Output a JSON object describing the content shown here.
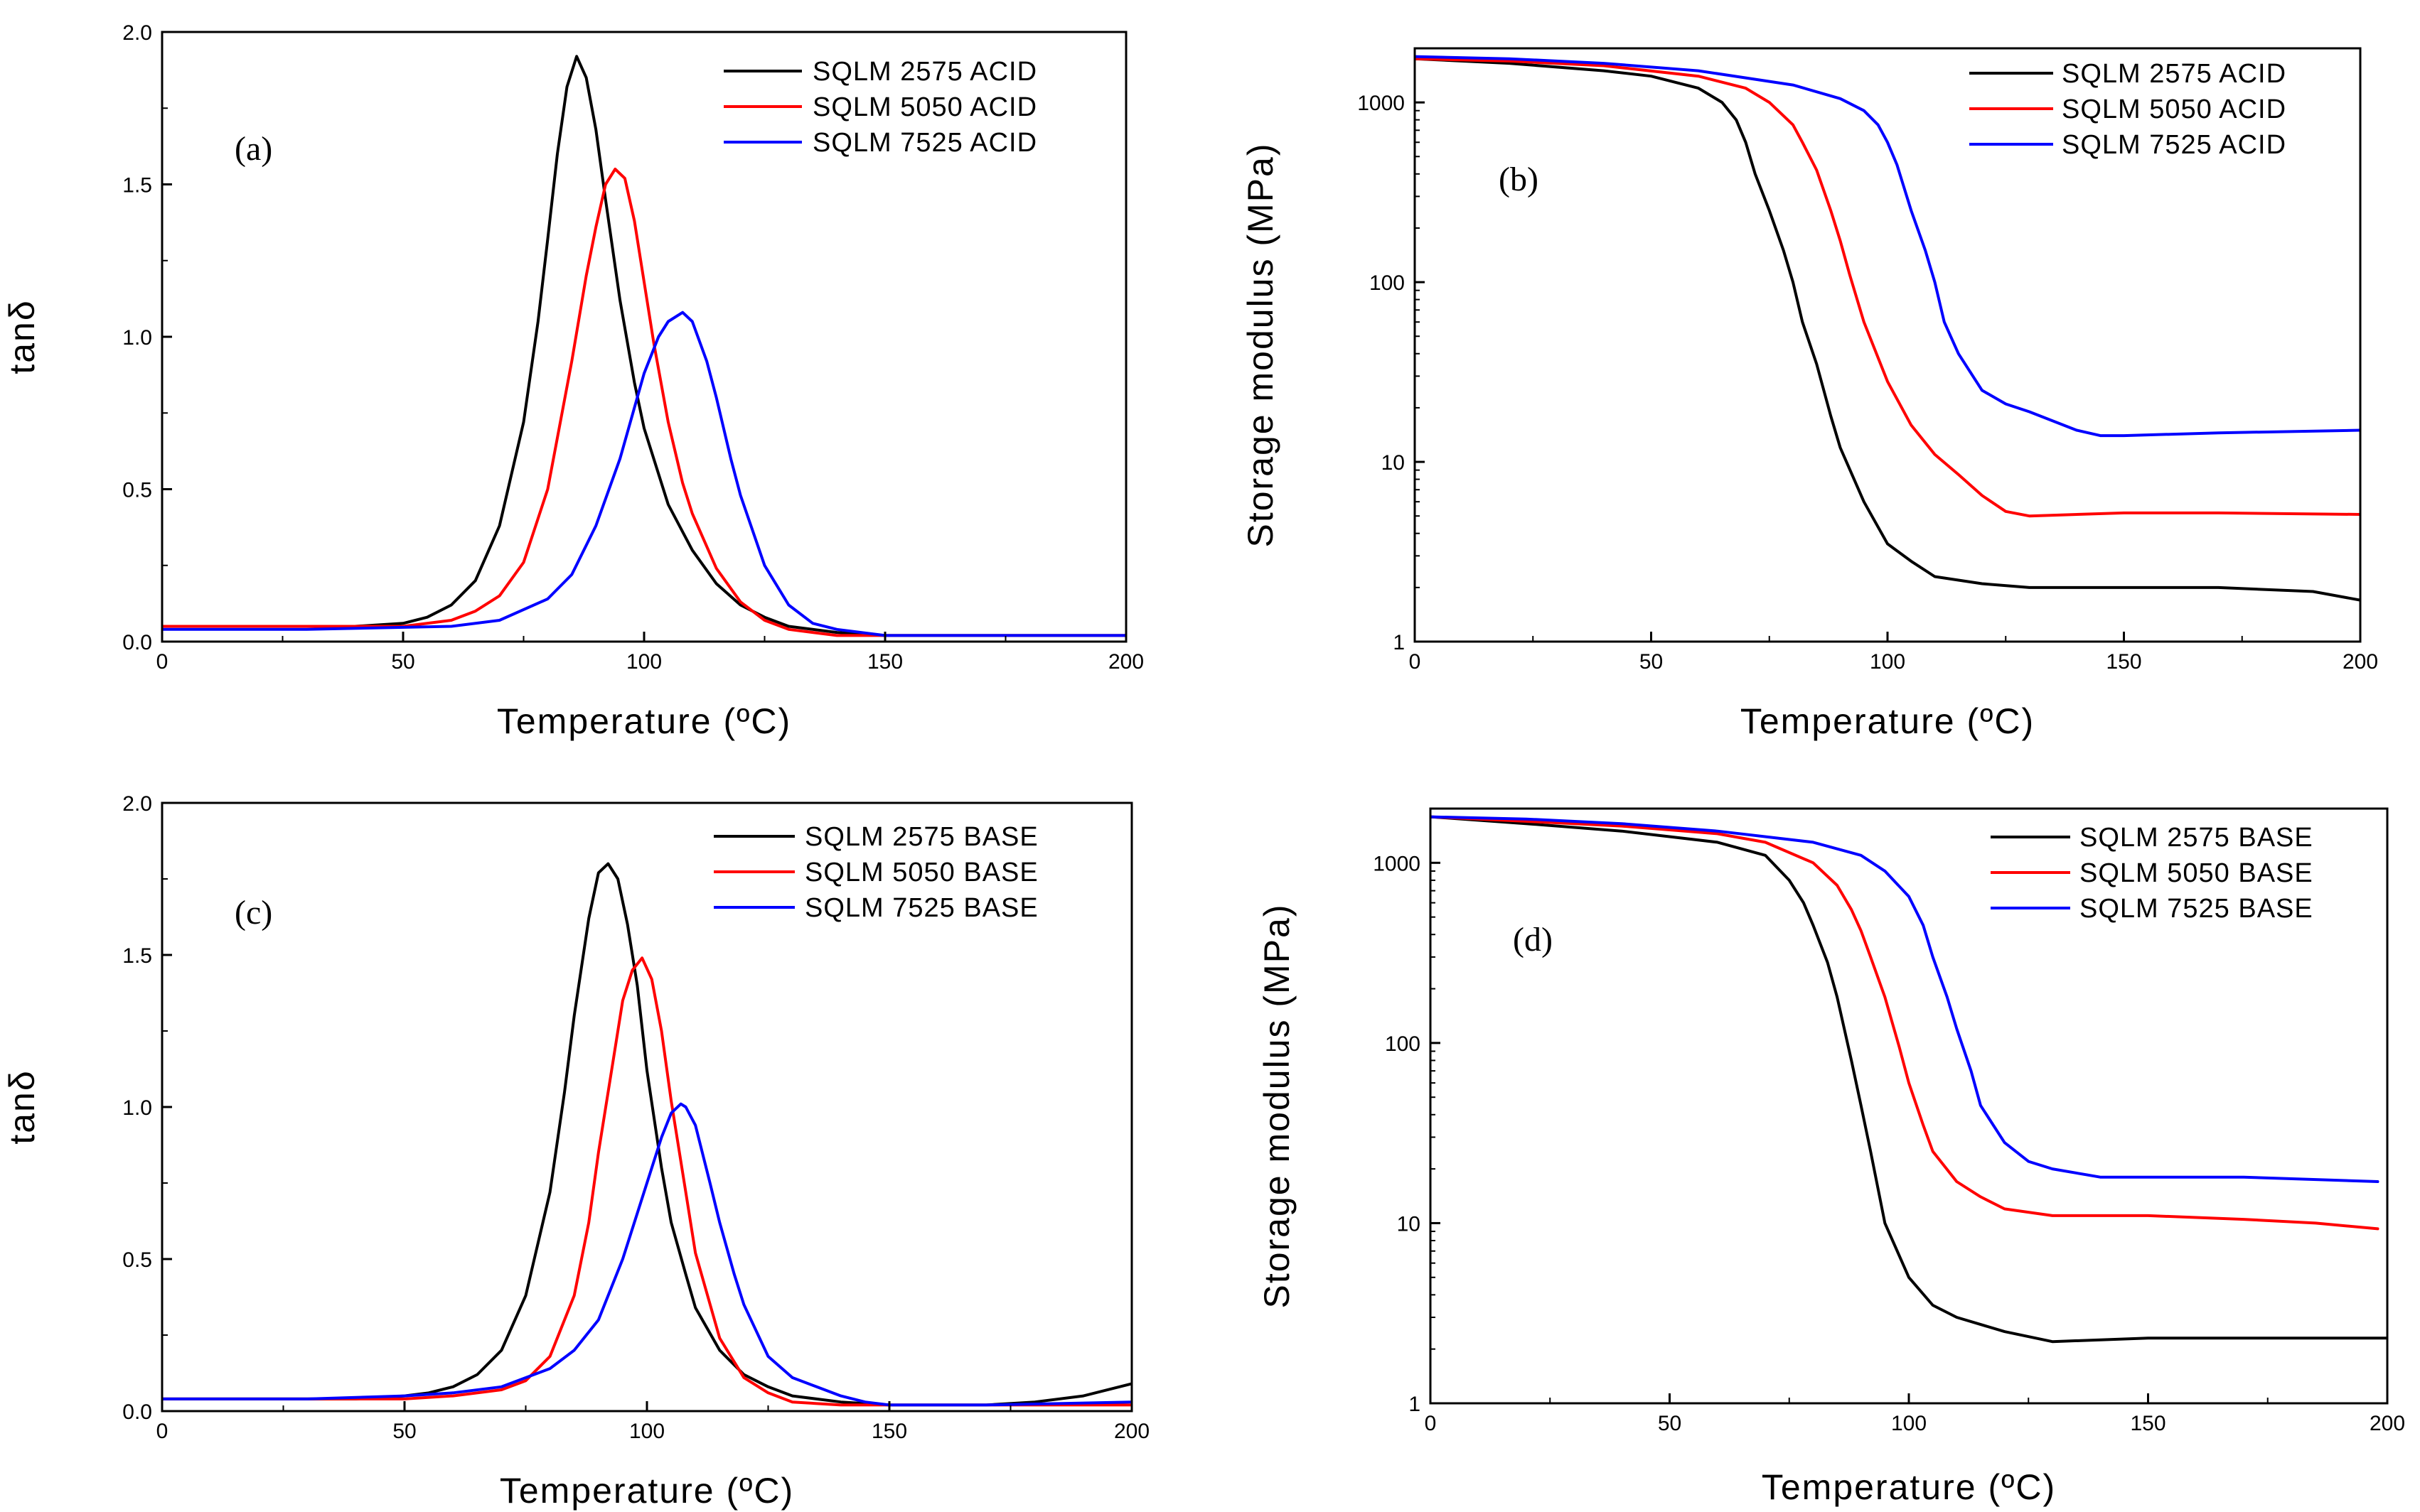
{
  "chart_data": [
    {
      "type": "line",
      "panel_label": "(a)",
      "xlabel": "Temperature (ºC)",
      "ylabel": "tanδ",
      "xlim": [
        0,
        200
      ],
      "ylim": [
        0,
        2.0
      ],
      "yscale": "linear",
      "xticks": [
        0,
        50,
        100,
        150,
        200
      ],
      "yticks": [
        0.0,
        0.5,
        1.0,
        1.5,
        2.0
      ],
      "xtick_labels": [
        "0",
        "50",
        "100",
        "150",
        "200"
      ],
      "ytick_labels": [
        "0.0",
        "0.5",
        "1.0",
        "1.5",
        "2.0"
      ],
      "legend_position": "top-right",
      "series": [
        {
          "name": "SQLM 2575 ACID",
          "color": "#000000",
          "x": [
            0,
            20,
            40,
            50,
            55,
            60,
            65,
            70,
            75,
            78,
            80,
            82,
            84,
            86,
            88,
            90,
            92,
            95,
            98,
            100,
            105,
            110,
            115,
            120,
            125,
            130,
            140,
            150,
            170,
            190,
            200
          ],
          "y": [
            0.05,
            0.05,
            0.05,
            0.06,
            0.08,
            0.12,
            0.2,
            0.38,
            0.72,
            1.05,
            1.32,
            1.6,
            1.82,
            1.92,
            1.85,
            1.68,
            1.45,
            1.12,
            0.85,
            0.7,
            0.45,
            0.3,
            0.19,
            0.12,
            0.08,
            0.05,
            0.03,
            0.02,
            0.02,
            0.02,
            0.02
          ]
        },
        {
          "name": "SQLM 5050 ACID",
          "color": "#ff0000",
          "x": [
            0,
            30,
            50,
            60,
            65,
            70,
            75,
            80,
            85,
            88,
            90,
            92,
            94,
            96,
            98,
            100,
            102,
            105,
            108,
            110,
            115,
            120,
            125,
            130,
            140,
            150,
            170,
            200
          ],
          "y": [
            0.05,
            0.05,
            0.05,
            0.07,
            0.1,
            0.15,
            0.26,
            0.5,
            0.92,
            1.2,
            1.36,
            1.5,
            1.55,
            1.52,
            1.38,
            1.18,
            0.98,
            0.72,
            0.52,
            0.42,
            0.24,
            0.13,
            0.07,
            0.04,
            0.02,
            0.02,
            0.02,
            0.02
          ]
        },
        {
          "name": "SQLM 7525 ACID",
          "color": "#0000ff",
          "x": [
            0,
            30,
            60,
            70,
            80,
            85,
            90,
            95,
            100,
            103,
            105,
            108,
            110,
            113,
            115,
            118,
            120,
            125,
            130,
            135,
            140,
            145,
            150,
            170,
            200
          ],
          "y": [
            0.04,
            0.04,
            0.05,
            0.07,
            0.14,
            0.22,
            0.38,
            0.6,
            0.88,
            1.0,
            1.05,
            1.08,
            1.05,
            0.92,
            0.8,
            0.6,
            0.48,
            0.25,
            0.12,
            0.06,
            0.04,
            0.03,
            0.02,
            0.02,
            0.02
          ]
        }
      ]
    },
    {
      "type": "line",
      "panel_label": "(b)",
      "xlabel": "Temperature (ºC)",
      "ylabel": "Storage modulus (MPa)",
      "xlim": [
        0,
        200
      ],
      "ylim": [
        1,
        2000
      ],
      "yscale": "log",
      "xticks": [
        0,
        50,
        100,
        150,
        200
      ],
      "yticks": [
        1,
        10,
        100,
        1000
      ],
      "xtick_labels": [
        "0",
        "50",
        "100",
        "150",
        "200"
      ],
      "ytick_labels": [
        "1",
        "10",
        "100",
        "1000"
      ],
      "legend_position": "top-right",
      "series": [
        {
          "name": "SQLM 2575 ACID",
          "color": "#000000",
          "x": [
            0,
            20,
            40,
            50,
            60,
            65,
            68,
            70,
            72,
            75,
            78,
            80,
            82,
            85,
            88,
            90,
            95,
            100,
            105,
            110,
            120,
            130,
            150,
            170,
            190,
            200
          ],
          "y": [
            1750,
            1650,
            1500,
            1400,
            1200,
            1000,
            800,
            600,
            400,
            250,
            150,
            100,
            60,
            35,
            18,
            12,
            6,
            3.5,
            2.8,
            2.3,
            2.1,
            2.0,
            2.0,
            2.0,
            1.9,
            1.7
          ]
        },
        {
          "name": "SQLM 5050 ACID",
          "color": "#ff0000",
          "x": [
            0,
            20,
            40,
            60,
            70,
            75,
            80,
            82,
            85,
            88,
            90,
            92,
            95,
            100,
            105,
            110,
            115,
            120,
            125,
            130,
            150,
            170,
            200
          ],
          "y": [
            1750,
            1700,
            1600,
            1400,
            1200,
            1000,
            750,
            600,
            420,
            250,
            170,
            110,
            60,
            28,
            16,
            11,
            8.5,
            6.5,
            5.3,
            5.0,
            5.2,
            5.2,
            5.1
          ]
        },
        {
          "name": "SQLM 7525 ACID",
          "color": "#0000ff",
          "x": [
            0,
            20,
            40,
            60,
            80,
            90,
            95,
            98,
            100,
            102,
            105,
            108,
            110,
            112,
            115,
            120,
            125,
            130,
            140,
            145,
            150,
            170,
            200
          ],
          "y": [
            1800,
            1750,
            1650,
            1500,
            1250,
            1050,
            900,
            750,
            600,
            450,
            250,
            150,
            100,
            60,
            40,
            25,
            21,
            19,
            15,
            14,
            14,
            14.5,
            15
          ]
        }
      ]
    },
    {
      "type": "line",
      "panel_label": "(c)",
      "xlabel": "Temperature (ºC)",
      "ylabel": "tanδ",
      "xlim": [
        0,
        200
      ],
      "ylim": [
        0,
        2.0
      ],
      "yscale": "linear",
      "xticks": [
        0,
        50,
        100,
        150,
        200
      ],
      "yticks": [
        0.0,
        0.5,
        1.0,
        1.5,
        2.0
      ],
      "xtick_labels": [
        "0",
        "50",
        "100",
        "150",
        "200"
      ],
      "ytick_labels": [
        "0.0",
        "0.5",
        "1.0",
        "1.5",
        "2.0"
      ],
      "legend_position": "top-right",
      "series": [
        {
          "name": "SQLM 2575 BASE",
          "color": "#000000",
          "x": [
            0,
            20,
            40,
            50,
            55,
            60,
            65,
            70,
            75,
            80,
            83,
            85,
            88,
            90,
            92,
            94,
            96,
            98,
            100,
            103,
            105,
            108,
            110,
            115,
            120,
            125,
            130,
            140,
            150,
            170,
            180,
            190,
            200
          ],
          "y": [
            0.04,
            0.04,
            0.04,
            0.05,
            0.06,
            0.08,
            0.12,
            0.2,
            0.38,
            0.72,
            1.05,
            1.3,
            1.62,
            1.77,
            1.8,
            1.75,
            1.6,
            1.4,
            1.12,
            0.8,
            0.62,
            0.45,
            0.34,
            0.2,
            0.12,
            0.08,
            0.05,
            0.03,
            0.02,
            0.02,
            0.03,
            0.05,
            0.09
          ]
        },
        {
          "name": "SQLM 5050 BASE",
          "color": "#ff0000",
          "x": [
            0,
            30,
            50,
            60,
            70,
            75,
            80,
            85,
            88,
            90,
            93,
            95,
            97,
            99,
            101,
            103,
            105,
            108,
            110,
            115,
            120,
            125,
            130,
            140,
            150,
            170,
            200
          ],
          "y": [
            0.04,
            0.04,
            0.04,
            0.05,
            0.07,
            0.1,
            0.18,
            0.38,
            0.62,
            0.85,
            1.15,
            1.35,
            1.45,
            1.49,
            1.42,
            1.25,
            1.02,
            0.72,
            0.52,
            0.24,
            0.11,
            0.06,
            0.03,
            0.02,
            0.02,
            0.02,
            0.02
          ]
        },
        {
          "name": "SQLM 7525 BASE",
          "color": "#0000ff",
          "x": [
            0,
            30,
            50,
            60,
            70,
            80,
            85,
            90,
            95,
            100,
            103,
            105,
            107,
            108,
            110,
            113,
            115,
            118,
            120,
            125,
            130,
            135,
            140,
            145,
            150,
            170,
            200
          ],
          "y": [
            0.04,
            0.04,
            0.05,
            0.06,
            0.08,
            0.14,
            0.2,
            0.3,
            0.5,
            0.75,
            0.9,
            0.98,
            1.01,
            1.0,
            0.94,
            0.75,
            0.62,
            0.45,
            0.35,
            0.18,
            0.11,
            0.08,
            0.05,
            0.03,
            0.02,
            0.02,
            0.03
          ]
        }
      ]
    },
    {
      "type": "line",
      "panel_label": "(d)",
      "xlabel": "Temperature (ºC)",
      "ylabel": "Storage modulus (MPa)",
      "xlim": [
        0,
        200
      ],
      "ylim": [
        1,
        2000
      ],
      "yscale": "log",
      "xticks": [
        0,
        50,
        100,
        150,
        200
      ],
      "yticks": [
        1,
        10,
        100,
        1000
      ],
      "xtick_labels": [
        "0",
        "50",
        "100",
        "150",
        "200"
      ],
      "ytick_labels": [
        "1",
        "10",
        "100",
        "1000"
      ],
      "legend_position": "top-right",
      "series": [
        {
          "name": "SQLM 2575 BASE",
          "color": "#000000",
          "x": [
            0,
            20,
            40,
            60,
            70,
            75,
            78,
            80,
            83,
            85,
            88,
            90,
            92,
            95,
            100,
            105,
            110,
            120,
            130,
            150,
            170,
            200
          ],
          "y": [
            1800,
            1650,
            1500,
            1300,
            1100,
            800,
            600,
            450,
            280,
            180,
            80,
            45,
            25,
            10,
            5,
            3.5,
            3,
            2.5,
            2.2,
            2.3,
            2.3,
            2.3
          ]
        },
        {
          "name": "SQLM 5050 BASE",
          "color": "#ff0000",
          "x": [
            0,
            20,
            40,
            60,
            70,
            80,
            85,
            88,
            90,
            92,
            95,
            98,
            100,
            103,
            105,
            110,
            115,
            120,
            130,
            150,
            170,
            185,
            198
          ],
          "y": [
            1800,
            1700,
            1600,
            1450,
            1300,
            1000,
            750,
            550,
            420,
            300,
            180,
            95,
            60,
            35,
            25,
            17,
            14,
            12,
            11,
            11,
            10.5,
            10,
            9.3
          ]
        },
        {
          "name": "SQLM 7525 BASE",
          "color": "#0000ff",
          "x": [
            0,
            20,
            40,
            60,
            80,
            90,
            95,
            100,
            103,
            105,
            108,
            110,
            113,
            115,
            120,
            125,
            130,
            140,
            150,
            170,
            198
          ],
          "y": [
            1800,
            1750,
            1650,
            1500,
            1300,
            1100,
            900,
            650,
            450,
            300,
            180,
            120,
            70,
            45,
            28,
            22,
            20,
            18,
            18,
            18,
            17
          ]
        }
      ]
    }
  ]
}
